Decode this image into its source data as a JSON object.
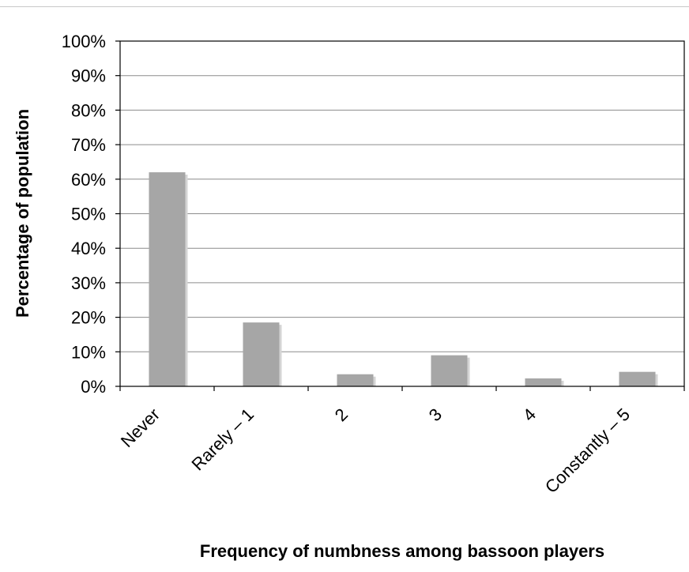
{
  "chart_data": {
    "type": "bar",
    "categories": [
      "Never",
      "Rarely – 1",
      "2",
      "3",
      "4",
      "Constantly – 5"
    ],
    "values": [
      62,
      18.5,
      3.5,
      9,
      2.3,
      4.2
    ],
    "xlabel": "Frequency of numbness among bassoon players",
    "ylabel": "Percentage of population",
    "ylim": [
      0,
      100
    ],
    "yticks": [
      "0%",
      "10%",
      "20%",
      "30%",
      "40%",
      "50%",
      "60%",
      "70%",
      "80%",
      "90%",
      "100%"
    ],
    "grid": true,
    "legend": "none",
    "colors": {
      "bar": "#a6a6a6",
      "bar_shadow": "#d4d4d4",
      "grid": "#8c8c8c",
      "axis": "#000000"
    }
  }
}
